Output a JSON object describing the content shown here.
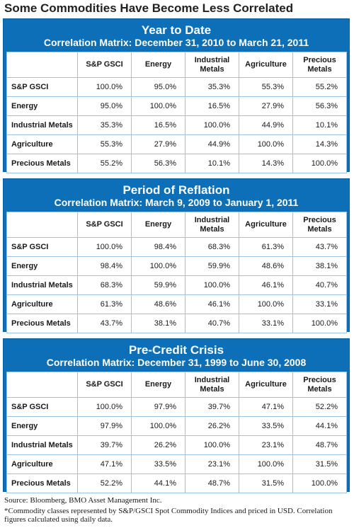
{
  "title": "Some Commodities Have Become Less Correlated",
  "source": "Source: Bloomberg, BMO Asset Management Inc.",
  "footnote": "*Commodity classes represented by S&P/GSCI Spot Commodity Indices and priced in USD. Correlation figures calculated using daily data.",
  "colors": {
    "panel_blue": "#0d6fb8",
    "grid_line": "#9cc3e4"
  },
  "chart_data": [
    {
      "type": "table",
      "title": "Year to Date",
      "subtitle": "Correlation Matrix: December 31, 2010 to March 21, 2011",
      "columns": [
        "S&P GSCI",
        "Energy",
        "Industrial Metals",
        "Agriculture",
        "Precious Metals"
      ],
      "rows": [
        {
          "label": "S&P GSCI",
          "values": [
            "100.0%",
            "95.0%",
            "35.3%",
            "55.3%",
            "55.2%"
          ]
        },
        {
          "label": "Energy",
          "values": [
            "95.0%",
            "100.0%",
            "16.5%",
            "27.9%",
            "56.3%"
          ]
        },
        {
          "label": "Industrial Metals",
          "values": [
            "35.3%",
            "16.5%",
            "100.0%",
            "44.9%",
            "10.1%"
          ]
        },
        {
          "label": "Agriculture",
          "values": [
            "55.3%",
            "27.9%",
            "44.9%",
            "100.0%",
            "14.3%"
          ]
        },
        {
          "label": "Precious Metals",
          "values": [
            "55.2%",
            "56.3%",
            "10.1%",
            "14.3%",
            "100.0%"
          ]
        }
      ]
    },
    {
      "type": "table",
      "title": "Period of Reflation",
      "subtitle": "Correlation Matrix: March 9, 2009 to January 1, 2011",
      "columns": [
        "S&P GSCI",
        "Energy",
        "Industrial Metals",
        "Agriculture",
        "Precious Metals"
      ],
      "rows": [
        {
          "label": "S&P GSCI",
          "values": [
            "100.0%",
            "98.4%",
            "68.3%",
            "61.3%",
            "43.7%"
          ]
        },
        {
          "label": "Energy",
          "values": [
            "98.4%",
            "100.0%",
            "59.9%",
            "48.6%",
            "38.1%"
          ]
        },
        {
          "label": "Industrial Metals",
          "values": [
            "68.3%",
            "59.9%",
            "100.0%",
            "46.1%",
            "40.7%"
          ]
        },
        {
          "label": "Agriculture",
          "values": [
            "61.3%",
            "48.6%",
            "46.1%",
            "100.0%",
            "33.1%"
          ]
        },
        {
          "label": "Precious Metals",
          "values": [
            "43.7%",
            "38.1%",
            "40.7%",
            "33.1%",
            "100.0%"
          ]
        }
      ]
    },
    {
      "type": "table",
      "title": "Pre-Credit Crisis",
      "subtitle": "Correlation Matrix: December 31, 1999 to June 30, 2008",
      "columns": [
        "S&P GSCI",
        "Energy",
        "Industrial Metals",
        "Agriculture",
        "Precious Metals"
      ],
      "rows": [
        {
          "label": "S&P GSCI",
          "values": [
            "100.0%",
            "97.9%",
            "39.7%",
            "47.1%",
            "52.2%"
          ]
        },
        {
          "label": "Energy",
          "values": [
            "97.9%",
            "100.0%",
            "26.2%",
            "33.5%",
            "44.1%"
          ]
        },
        {
          "label": "Industrial Metals",
          "values": [
            "39.7%",
            "26.2%",
            "100.0%",
            "23.1%",
            "48.7%"
          ]
        },
        {
          "label": "Agriculture",
          "values": [
            "47.1%",
            "33.5%",
            "23.1%",
            "100.0%",
            "31.5%"
          ]
        },
        {
          "label": "Precious Metals",
          "values": [
            "52.2%",
            "44.1%",
            "48.7%",
            "31.5%",
            "100.0%"
          ]
        }
      ]
    }
  ]
}
